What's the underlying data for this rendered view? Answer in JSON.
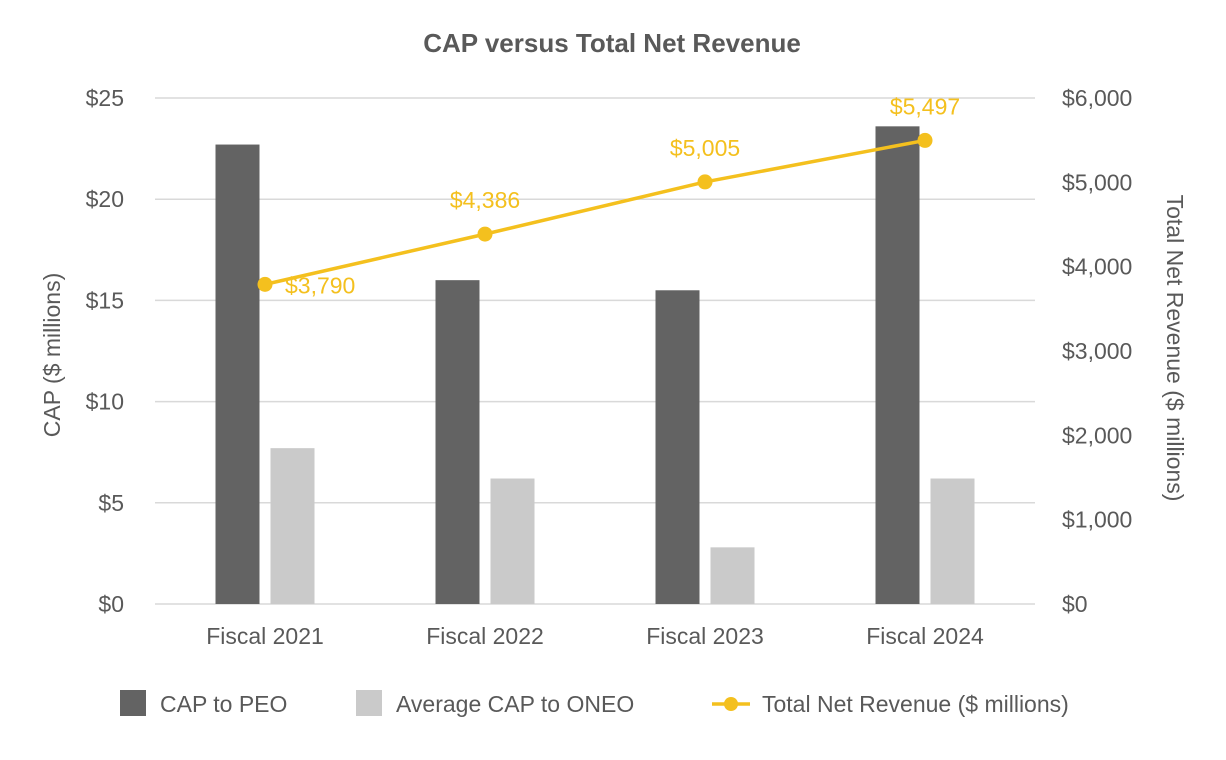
{
  "chart_data": {
    "type": "bar",
    "title": "CAP versus Total Net Revenue",
    "categories": [
      "Fiscal 2021",
      "Fiscal 2022",
      "Fiscal 2023",
      "Fiscal 2024"
    ],
    "series": [
      {
        "name": "CAP to PEO",
        "type": "bar",
        "axis": "left",
        "color": "#636363",
        "values": [
          22.7,
          16.0,
          15.5,
          23.6
        ]
      },
      {
        "name": "Average CAP to ONEO",
        "type": "bar",
        "axis": "left",
        "color": "#CACACA",
        "values": [
          7.7,
          6.2,
          2.8,
          6.2
        ]
      },
      {
        "name": "Total Net Revenue ($ millions)",
        "type": "line",
        "axis": "right",
        "color": "#F4C01E",
        "values": [
          3790,
          4386,
          5005,
          5497
        ],
        "labels": [
          "$3,790",
          "$4,386",
          "$5,005",
          "$5,497"
        ]
      }
    ],
    "ylabel": "CAP ($ millions)",
    "ylim": [
      0,
      25
    ],
    "yticks": [
      "$0",
      "$5",
      "$10",
      "$15",
      "$20",
      "$25"
    ],
    "y2label": "Total Net Revenue ($ millions)",
    "y2lim": [
      0,
      6000
    ],
    "y2ticks": [
      "$0",
      "$1,000",
      "$2,000",
      "$3,000",
      "$4,000",
      "$5,000",
      "$6,000"
    ],
    "grid": true,
    "legend": "bottom"
  }
}
